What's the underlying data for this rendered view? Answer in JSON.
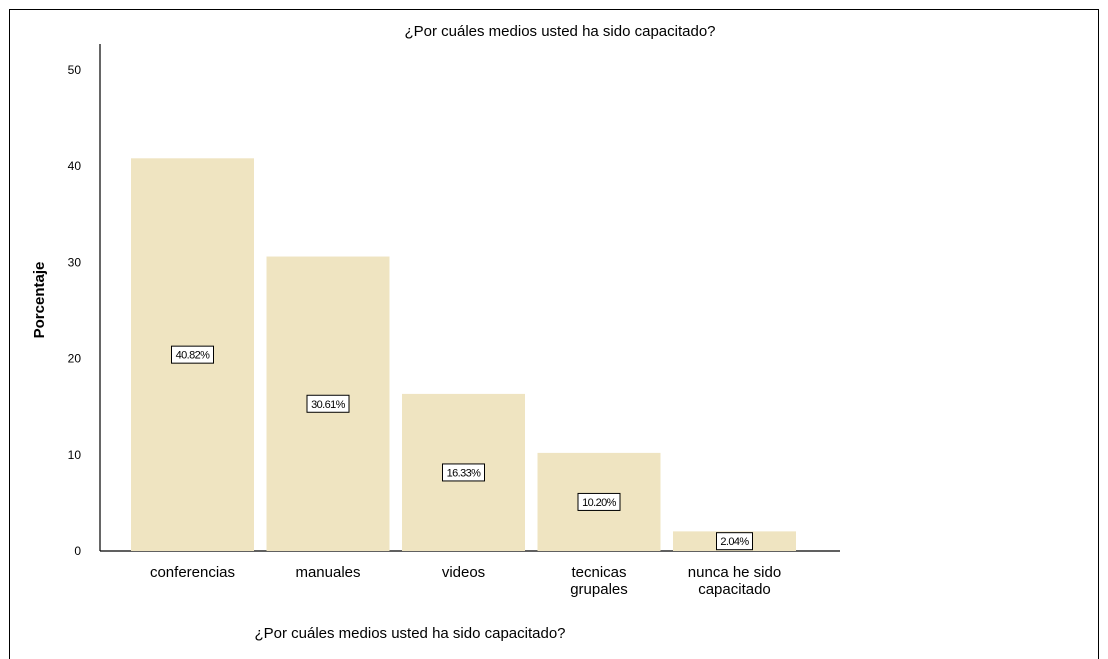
{
  "chart_data": {
    "type": "bar",
    "title": "¿Por cuáles medios usted ha sido capacitado?",
    "xlabel": "¿Por cuáles medios usted ha sido capacitado?",
    "ylabel": "Porcentaje",
    "categories": [
      [
        "conferencias"
      ],
      [
        "manuales"
      ],
      [
        "videos"
      ],
      [
        "tecnicas",
        "grupales"
      ],
      [
        "nunca he sido",
        "capacitado"
      ]
    ],
    "values": [
      40.82,
      30.61,
      16.33,
      10.2,
      2.04
    ],
    "data_labels": [
      "40.82%",
      "30.61%",
      "16.33%",
      "10.20%",
      "2.04%"
    ],
    "yticks": [
      "0",
      "10",
      "20",
      "30",
      "40",
      "50"
    ],
    "ylim": [
      0,
      50
    ],
    "bar_color": "#efe4c1",
    "grid": false,
    "legend": "none"
  }
}
